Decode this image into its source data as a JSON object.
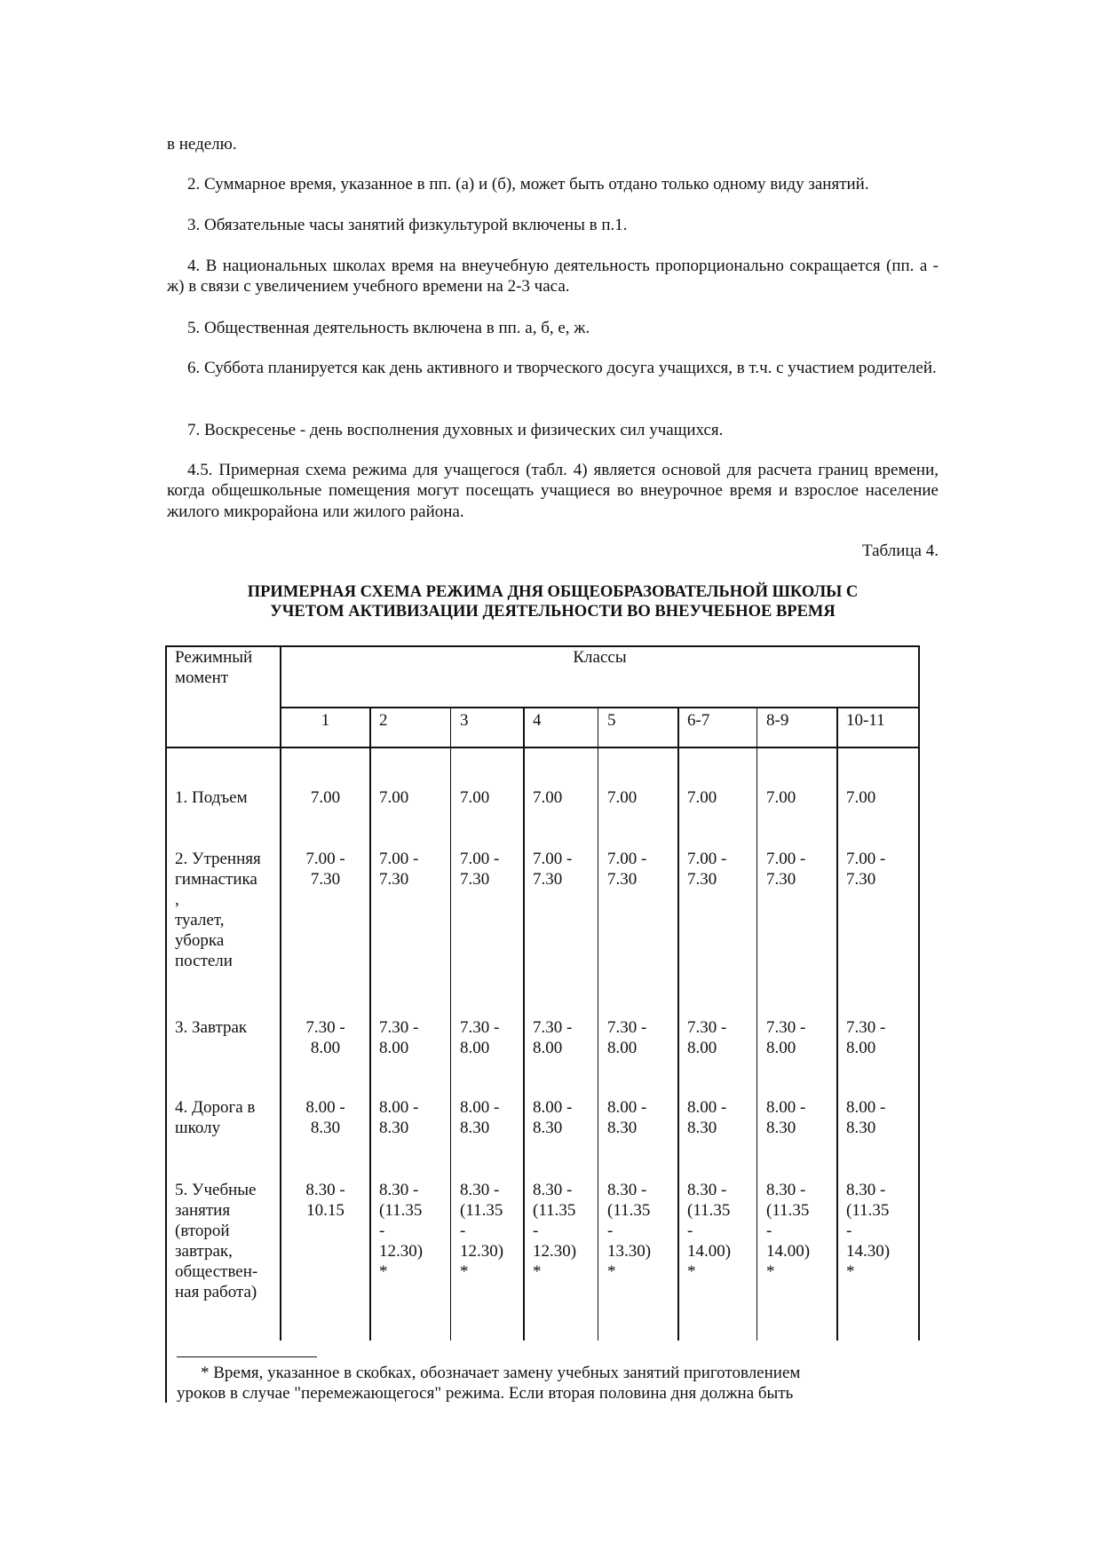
{
  "paragraphs": [
    "в неделю.",
    "2. Суммарное время, указанное в пп. (а) и (б), может быть отдано только одному виду занятий.",
    "3. Обязательные часы занятий физкультурой включены в п.1.",
    "4. В национальных школах время на внеучебную деятельность пропорционально сокращается (пп. а - ж) в связи с увеличением учебного времени на 2-3 часа.",
    "5. Общественная деятельность включена в пп. а, б, е, ж.",
    "6. Суббота планируется как день активного и творческого досуга учащихся, в т.ч. с участием родителей.",
    "7. Воскресенье - день восполнения духовных и физических сил учащихся.",
    "4.5. Примерная схема режима для учащегося (табл. 4) является основой для расчета границ времени, когда общешкольные помещения могут посещать учащиеся во внеурочное время и взрослое население жилого микрорайона или жилого района."
  ],
  "table_caption": "Таблица 4.",
  "table_title_1": "ПРИМЕРНАЯ СХЕМА РЕЖИМА ДНЯ ОБЩЕОБРАЗОВАТЕЛЬНОЙ ШКОЛЫ С",
  "table_title_2": "УЧЕТОМ АКТИВИЗАЦИИ ДЕЯТЕЛЬНОСТИ ВО ВНЕУЧЕБНОЕ ВРЕМЯ",
  "table": {
    "header_moment": "Режимный\nмомент",
    "header_classes": "Классы",
    "classes": [
      "1",
      "2",
      "3",
      "4",
      "5",
      "6-7",
      "8-9",
      "10-11"
    ],
    "rows": [
      {
        "label": "1. Подъем",
        "values": [
          "7.00",
          "7.00",
          "7.00",
          "7.00",
          "7.00",
          "7.00",
          "7.00",
          "7.00"
        ]
      },
      {
        "label": "2. Утренняя\nгимнастика\n,\nтуалет,\nуборка\nпостели",
        "values": [
          "7.00 -\n7.30",
          "7.00 -\n7.30",
          "7.00 -\n7.30",
          "7.00 -\n7.30",
          "7.00 -\n7.30",
          "7.00 -\n7.30",
          "7.00 -\n7.30",
          "7.00 -\n7.30"
        ]
      },
      {
        "label": "3. Завтрак",
        "values": [
          "7.30 -\n8.00",
          "7.30 -\n8.00",
          "7.30 -\n8.00",
          "7.30 -\n8.00",
          "7.30 -\n8.00",
          "7.30 -\n8.00",
          "7.30 -\n8.00",
          "7.30 -\n8.00"
        ]
      },
      {
        "label": "4. Дорога в\nшколу",
        "values": [
          "8.00 -\n8.30",
          "8.00 -\n8.30",
          "8.00 -\n8.30",
          "8.00 -\n8.30",
          "8.00 -\n8.30",
          "8.00 -\n8.30",
          "8.00 -\n8.30",
          "8.00 -\n8.30"
        ]
      },
      {
        "label": "5. Учебные\nзанятия\n(второй\nзавтрак,\nобществен-\nная работа)",
        "values": [
          "8.30 -\n10.15",
          "8.30 -\n(11.35\n-\n12.30)\n*",
          "8.30 -\n(11.35\n-\n12.30)\n*",
          "8.30 -\n(11.35\n-\n12.30)\n*",
          "8.30 -\n(11.35\n-\n13.30)\n*",
          "8.30 -\n(11.35\n-\n14.00)\n*",
          "8.30 -\n(11.35\n-\n14.00)\n*",
          "8.30 -\n(11.35\n-\n14.30)\n*"
        ]
      }
    ]
  },
  "footnote_1": "* Время, указанное в скобках, обозначает замену учебных занятий приготовлением",
  "footnote_2": "уроков в случае \"перемежающегося\" режима. Если вторая половина дня должна быть"
}
